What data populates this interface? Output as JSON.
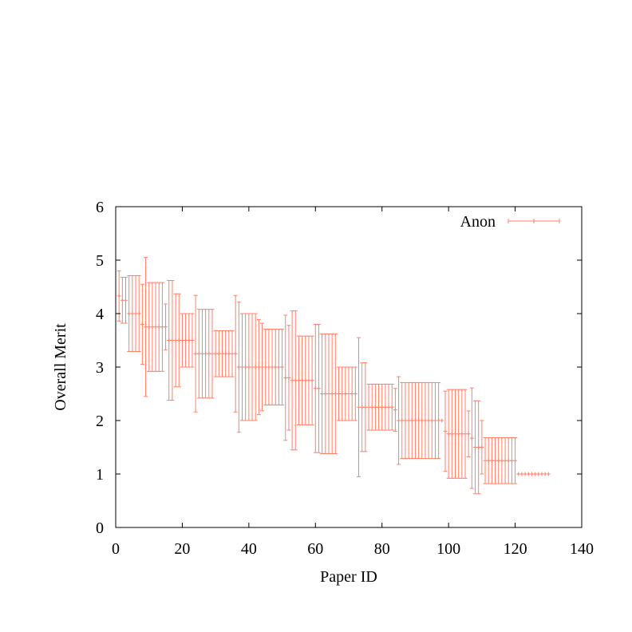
{
  "chart_data": {
    "type": "scatter",
    "xlabel": "Paper ID",
    "ylabel": "Overall Merit",
    "xlim": [
      0,
      140
    ],
    "ylim": [
      0,
      6
    ],
    "xticks": [
      "0",
      "20",
      "40",
      "60",
      "80",
      "100",
      "120",
      "140"
    ],
    "yticks": [
      "0",
      "1",
      "2",
      "3",
      "4",
      "5",
      "6"
    ],
    "legend_position": "top-right",
    "grid": false,
    "series": [
      {
        "name": "Anon",
        "color": "#ff7f66",
        "error_bars": true,
        "y": [
          4.33,
          4.25,
          4.25,
          4.0,
          4.0,
          4.0,
          4.0,
          3.8,
          3.75,
          3.75,
          3.75,
          3.75,
          3.75,
          3.75,
          3.75,
          3.5,
          3.5,
          3.5,
          3.5,
          3.5,
          3.5,
          3.5,
          3.5,
          3.25,
          3.25,
          3.25,
          3.25,
          3.25,
          3.25,
          3.25,
          3.25,
          3.25,
          3.25,
          3.25,
          3.25,
          3.25,
          3.0,
          3.0,
          3.0,
          3.0,
          3.0,
          3.0,
          3.0,
          3.0,
          3.0,
          3.0,
          3.0,
          3.0,
          3.0,
          3.0,
          2.8,
          2.8,
          2.75,
          2.75,
          2.75,
          2.75,
          2.75,
          2.75,
          2.75,
          2.6,
          2.6,
          2.5,
          2.5,
          2.5,
          2.5,
          2.5,
          2.5,
          2.5,
          2.5,
          2.5,
          2.5,
          2.5,
          2.25,
          2.25,
          2.25,
          2.25,
          2.25,
          2.25,
          2.25,
          2.25,
          2.25,
          2.25,
          2.25,
          2.2,
          2.0,
          2.0,
          2.0,
          2.0,
          2.0,
          2.0,
          2.0,
          2.0,
          2.0,
          2.0,
          2.0,
          2.0,
          2.0,
          2.0,
          1.8,
          1.75,
          1.75,
          1.75,
          1.75,
          1.75,
          1.75,
          1.75,
          1.67,
          1.5,
          1.5,
          1.5,
          1.25,
          1.25,
          1.25,
          1.25,
          1.25,
          1.25,
          1.25,
          1.25,
          1.25,
          1.25,
          1.0,
          1.0,
          1.0,
          1.0,
          1.0,
          1.0,
          1.0,
          1.0,
          1.0,
          1.0
        ],
        "err": [
          0.47,
          0.43,
          0.43,
          0.71,
          0.71,
          0.71,
          0.71,
          0.75,
          1.3,
          0.83,
          0.83,
          0.83,
          0.83,
          0.83,
          0.43,
          1.12,
          1.12,
          0.87,
          0.87,
          0.5,
          0.5,
          0.5,
          0.5,
          1.09,
          0.83,
          0.83,
          0.83,
          0.83,
          0.83,
          0.43,
          0.43,
          0.43,
          0.43,
          0.43,
          0.43,
          1.09,
          1.22,
          1.0,
          1.0,
          1.0,
          1.0,
          1.0,
          0.89,
          0.82,
          0.71,
          0.71,
          0.71,
          0.71,
          0.71,
          0.71,
          1.17,
          0.98,
          1.3,
          1.3,
          0.83,
          0.83,
          0.83,
          0.83,
          0.83,
          1.2,
          1.2,
          1.12,
          1.12,
          1.12,
          1.12,
          1.12,
          0.5,
          0.5,
          0.5,
          0.5,
          0.5,
          0.5,
          1.3,
          0.83,
          0.83,
          0.43,
          0.43,
          0.43,
          0.43,
          0.43,
          0.43,
          0.43,
          0.43,
          0.4,
          0.82,
          0.71,
          0.71,
          0.71,
          0.71,
          0.71,
          0.71,
          0.71,
          0.71,
          0.71,
          0.71,
          0.71,
          0.71,
          0.0,
          0.75,
          0.83,
          0.83,
          0.83,
          0.83,
          0.83,
          0.83,
          0.43,
          0.94,
          0.87,
          0.87,
          0.5,
          0.43,
          0.43,
          0.43,
          0.43,
          0.43,
          0.43,
          0.43,
          0.43,
          0.43,
          0.43,
          0.0,
          0.0,
          0.0,
          0.0,
          0.0,
          0.0,
          0.0,
          0.0,
          0.0,
          0.0
        ]
      }
    ]
  }
}
